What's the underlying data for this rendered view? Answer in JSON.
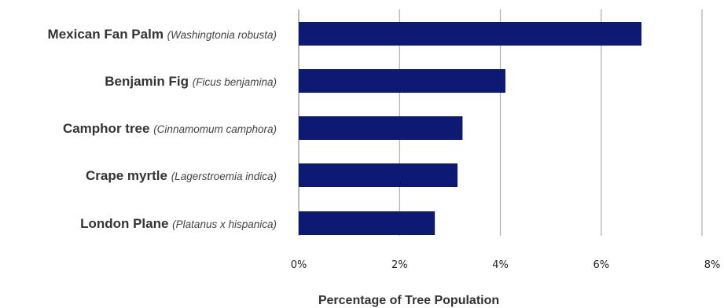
{
  "chart_data": {
    "type": "bar",
    "orientation": "horizontal",
    "categories": [
      {
        "common": "Mexican Fan Palm",
        "scientific": "(Washingtonia robusta)"
      },
      {
        "common": "Benjamin Fig",
        "scientific": "(Ficus benjamina)"
      },
      {
        "common": "Camphor tree",
        "scientific": "(Cinnamomum camphora)"
      },
      {
        "common": "Crape myrtle",
        "scientific": "(Lagerstroemia indica)"
      },
      {
        "common": "London Plane",
        "scientific": "(Platanus x hispanica)"
      }
    ],
    "values": [
      6.8,
      4.1,
      3.25,
      3.15,
      2.7
    ],
    "xlabel": "Percentage of Tree Population",
    "xlim": [
      0,
      8
    ],
    "xticks": [
      "0%",
      "2%",
      "4%",
      "6%",
      "8%"
    ],
    "grid": true,
    "bar_color": "#0c1a73"
  }
}
